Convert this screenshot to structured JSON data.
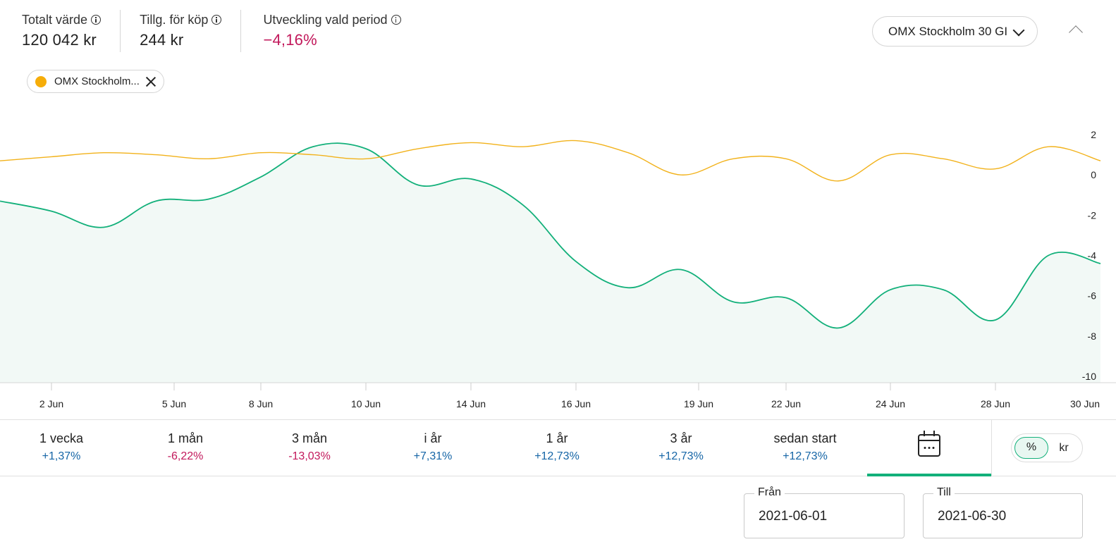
{
  "summary": {
    "total_value_label": "Totalt värde",
    "total_value": "120 042 kr",
    "available_label": "Tillg. för köp",
    "available_value": "244 kr",
    "change_label": "Utveckling vald period",
    "change_value": "−4,16%"
  },
  "index_selector": {
    "value": "OMX Stockholm 30 GI"
  },
  "compare_chip": {
    "label": "OMX Stockholm...",
    "color": "#f6ad09"
  },
  "chart_data": {
    "type": "line",
    "y_axis_position": "right",
    "ylim": [
      -10,
      2
    ],
    "y_ticks": [
      "2",
      "0",
      "-2",
      "-4",
      "-6",
      "-8",
      "-10"
    ],
    "x_ticks": [
      "2 Jun",
      "5 Jun",
      "8 Jun",
      "10 Jun",
      "14 Jun",
      "16 Jun",
      "19 Jun",
      "22 Jun",
      "24 Jun",
      "28 Jun",
      "30 Jun"
    ],
    "grid": false,
    "series": [
      {
        "color": "#12b07a",
        "fill": "#f2f9f6",
        "area": true,
        "points": [
          [
            "1 Jun",
            -1.3
          ],
          [
            "2 Jun",
            -1.8
          ],
          [
            "3 Jun",
            -2.6
          ],
          [
            "4 Jun",
            -1.3
          ],
          [
            "7 Jun",
            -1.2
          ],
          [
            "8 Jun",
            -0.1
          ],
          [
            "9 Jun",
            1.4
          ],
          [
            "10 Jun",
            1.3
          ],
          [
            "11 Jun",
            -0.5
          ],
          [
            "14 Jun",
            -0.2
          ],
          [
            "15 Jun",
            -1.5
          ],
          [
            "16 Jun",
            -4.3
          ],
          [
            "17 Jun",
            -5.6
          ],
          [
            "18 Jun",
            -4.7
          ],
          [
            "21 Jun",
            -6.3
          ],
          [
            "22 Jun",
            -6.1
          ],
          [
            "23 Jun",
            -7.6
          ],
          [
            "24 Jun",
            -5.7
          ],
          [
            "25 Jun",
            -5.7
          ],
          [
            "28 Jun",
            -7.2
          ],
          [
            "29 Jun",
            -4.0
          ],
          [
            "30 Jun",
            -4.4
          ]
        ]
      },
      {
        "color": "#f2b21b",
        "area": false,
        "points": [
          [
            "1 Jun",
            0.7
          ],
          [
            "2 Jun",
            0.9
          ],
          [
            "3 Jun",
            1.1
          ],
          [
            "4 Jun",
            1.0
          ],
          [
            "7 Jun",
            0.8
          ],
          [
            "8 Jun",
            1.1
          ],
          [
            "9 Jun",
            1.0
          ],
          [
            "10 Jun",
            0.8
          ],
          [
            "11 Jun",
            1.3
          ],
          [
            "14 Jun",
            1.6
          ],
          [
            "15 Jun",
            1.4
          ],
          [
            "16 Jun",
            1.7
          ],
          [
            "17 Jun",
            1.1
          ],
          [
            "18 Jun",
            0.0
          ],
          [
            "21 Jun",
            0.8
          ],
          [
            "22 Jun",
            0.8
          ],
          [
            "23 Jun",
            -0.3
          ],
          [
            "24 Jun",
            1.0
          ],
          [
            "25 Jun",
            0.8
          ],
          [
            "28 Jun",
            0.3
          ],
          [
            "29 Jun",
            1.4
          ],
          [
            "30 Jun",
            0.7
          ]
        ]
      }
    ]
  },
  "periods": [
    {
      "label": "1 vecka",
      "value": "+1,37%",
      "sign": "pos"
    },
    {
      "label": "1 mån",
      "value": "-6,22%",
      "sign": "neg"
    },
    {
      "label": "3 mån",
      "value": "-13,03%",
      "sign": "neg"
    },
    {
      "label": "i år",
      "value": "+7,31%",
      "sign": "pos"
    },
    {
      "label": "1 år",
      "value": "+12,73%",
      "sign": "pos"
    },
    {
      "label": "3 år",
      "value": "+12,73%",
      "sign": "pos"
    },
    {
      "label": "sedan start",
      "value": "+12,73%",
      "sign": "pos"
    }
  ],
  "calendar_tab": {
    "icon": "calendar-icon",
    "active": true
  },
  "unit_toggle": {
    "percent_label": "%",
    "currency_label": "kr",
    "selected": "%"
  },
  "date_range": {
    "from_label": "Från",
    "from_value": "2021-06-01",
    "to_label": "Till",
    "to_value": "2021-06-30"
  }
}
